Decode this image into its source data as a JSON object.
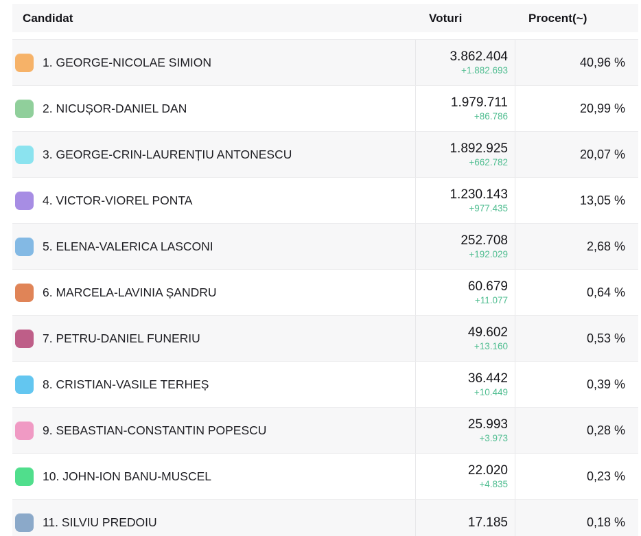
{
  "table": {
    "headers": {
      "candidate": "Candidat",
      "votes": "Voturi",
      "percent": "Procent(~)"
    }
  },
  "colors": {
    "delta_green": "#4fbd90",
    "row_alt_background": "#f7f7f8",
    "row_background": "#ffffff",
    "border": "#e7e7e9"
  },
  "chart_data": {
    "type": "table",
    "columns": [
      "Candidat",
      "Voturi",
      "Procent(~)"
    ],
    "rows": [
      {
        "rank": 1,
        "name": "GEORGE-NICOLAE SIMION",
        "color": "#f6b268",
        "votes": "3.862.404",
        "votes_delta": "+1.882.693",
        "percent": "40,96 %"
      },
      {
        "rank": 2,
        "name": "NICUȘOR-DANIEL DAN",
        "color": "#90cf9b",
        "votes": "1.979.711",
        "votes_delta": "+86.786",
        "percent": "20,99 %"
      },
      {
        "rank": 3,
        "name": "GEORGE-CRIN-LAURENȚIU ANTONESCU",
        "color": "#8be3ef",
        "votes": "1.892.925",
        "votes_delta": "+662.782",
        "percent": "20,07 %"
      },
      {
        "rank": 4,
        "name": "VICTOR-VIOREL PONTA",
        "color": "#a78de4",
        "votes": "1.230.143",
        "votes_delta": "+977.435",
        "percent": "13,05 %"
      },
      {
        "rank": 5,
        "name": "ELENA-VALERICA LASCONI",
        "color": "#83b9e4",
        "votes": "252.708",
        "votes_delta": "+192.029",
        "percent": "2,68 %"
      },
      {
        "rank": 6,
        "name": "MARCELA-LAVINIA ȘANDRU",
        "color": "#e08457",
        "votes": "60.679",
        "votes_delta": "+11.077",
        "percent": "0,64 %"
      },
      {
        "rank": 7,
        "name": "PETRU-DANIEL FUNERIU",
        "color": "#be5e88",
        "votes": "49.602",
        "votes_delta": "+13.160",
        "percent": "0,53 %"
      },
      {
        "rank": 8,
        "name": "CRISTIAN-VASILE TERHEȘ",
        "color": "#63c6f0",
        "votes": "36.442",
        "votes_delta": "+10.449",
        "percent": "0,39 %"
      },
      {
        "rank": 9,
        "name": "SEBASTIAN-CONSTANTIN POPESCU",
        "color": "#f09ac4",
        "votes": "25.993",
        "votes_delta": "+3.973",
        "percent": "0,28 %"
      },
      {
        "rank": 10,
        "name": "JOHN-ION BANU-MUSCEL",
        "color": "#50de8c",
        "votes": "22.020",
        "votes_delta": "+4.835",
        "percent": "0,23 %"
      },
      {
        "rank": 11,
        "name": "SILVIU PREDOIU",
        "color": "#8ba9c9",
        "votes": "17.185",
        "votes_delta": null,
        "percent": "0,18 %"
      }
    ]
  }
}
